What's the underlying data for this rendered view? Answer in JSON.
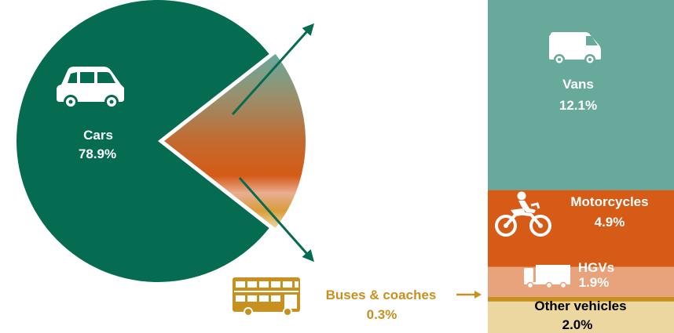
{
  "chart_data": {
    "type": "pie",
    "title": "",
    "slices": [
      {
        "name": "Cars",
        "label": "Cars",
        "value_label": "78.9%",
        "value": 78.9,
        "color": "#056b51",
        "icon": "car-icon"
      },
      {
        "name": "Vans",
        "label": "Vans",
        "value_label": "12.1%",
        "value": 12.1,
        "color": "#67a99b",
        "icon": "van-icon"
      },
      {
        "name": "Motorcycles",
        "label": "Motorcycles",
        "value_label": "4.9%",
        "value": 4.9,
        "color": "#d55b17",
        "icon": "motorcycle-icon"
      },
      {
        "name": "HGVs",
        "label": "HGVs",
        "value_label": "1.9%",
        "value": 1.9,
        "color": "#e8a27c",
        "icon": "hgv-icon"
      },
      {
        "name": "Buses & coaches",
        "label": "Buses & coaches",
        "value_label": "0.3%",
        "value": 0.3,
        "color": "#c8911f",
        "icon": "bus-icon"
      },
      {
        "name": "Other vehicles",
        "label": "Other vehicles",
        "value_label": "2.0%",
        "value": 2.0,
        "color": "#ecd7a0"
      }
    ],
    "breakout_order": [
      "Vans",
      "Motorcycles",
      "HGVs",
      "Buses & coaches",
      "Other vehicles"
    ]
  },
  "colors": {
    "cars": "#056b51",
    "arrow": "#056b51",
    "vans": "#67a99b",
    "motorcycles": "#d55b17",
    "hgvs": "#e8a27c",
    "buses": "#c8911f",
    "other": "#ecd7a0",
    "bus_text": "#c8911f"
  }
}
